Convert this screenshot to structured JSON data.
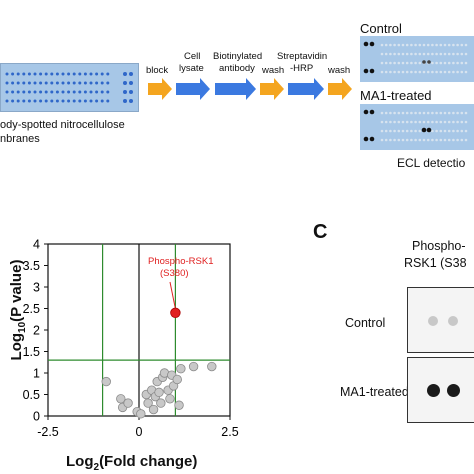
{
  "workflow": {
    "membrane_caption_line1": "ody-spotted nitrocellulose",
    "membrane_caption_line2": "nbranes",
    "steps": {
      "block": "block",
      "cell_lysate_1": "Cell",
      "cell_lysate_2": "lysate",
      "biotinylated_1": "Biotinylated",
      "biotinylated_2": "antibody",
      "wash_1": "wash",
      "strep_1": "Streptavidin",
      "strep_2": "-HRP",
      "wash_2": "wash"
    },
    "blot_control_label": "Control",
    "blot_treated_label": "MA1-treated",
    "ecl_label": "ECL detectio",
    "colors": {
      "arrow_orange": "#f4a51f",
      "arrow_blue": "#3b79e0",
      "membrane_bg": "#a7c7e7",
      "dot_blue": "#2f67c9"
    }
  },
  "chart_data": {
    "type": "scatter",
    "xlabel": "Log2(Fold change)",
    "ylabel": "Log10(P value)",
    "xlim": [
      -2.5,
      2.5
    ],
    "ylim": [
      0,
      4
    ],
    "xticks": [
      "-2.5",
      "0",
      "2.5"
    ],
    "yticks": [
      "0",
      "0.5",
      "1",
      "1.5",
      "2",
      "2.5",
      "3",
      "3.5",
      "4"
    ],
    "grid": false,
    "vlines": [
      -1,
      0,
      1
    ],
    "hline": 1.3,
    "highlight": {
      "label_line1": "Phospho-RSK1",
      "label_line2": "(S380)",
      "x": 1.0,
      "y": 2.4,
      "color": "#e02020"
    },
    "points": [
      {
        "x": -0.5,
        "y": 0.4
      },
      {
        "x": -0.45,
        "y": 0.2
      },
      {
        "x": -0.3,
        "y": 0.3
      },
      {
        "x": -0.05,
        "y": 0.1
      },
      {
        "x": 0.05,
        "y": 0.05
      },
      {
        "x": 0.2,
        "y": 0.5
      },
      {
        "x": 0.25,
        "y": 0.3
      },
      {
        "x": 0.35,
        "y": 0.6
      },
      {
        "x": 0.4,
        "y": 0.15
      },
      {
        "x": 0.45,
        "y": 0.45
      },
      {
        "x": 0.5,
        "y": 0.8
      },
      {
        "x": 0.55,
        "y": 0.55
      },
      {
        "x": 0.6,
        "y": 0.3
      },
      {
        "x": 0.65,
        "y": 0.9
      },
      {
        "x": 0.7,
        "y": 1.0
      },
      {
        "x": 0.8,
        "y": 0.6
      },
      {
        "x": 0.85,
        "y": 0.4
      },
      {
        "x": 0.9,
        "y": 0.95
      },
      {
        "x": 0.95,
        "y": 0.7
      },
      {
        "x": 1.05,
        "y": 0.85
      },
      {
        "x": 1.1,
        "y": 0.25
      },
      {
        "x": 1.15,
        "y": 1.1
      },
      {
        "x": 1.5,
        "y": 1.15
      },
      {
        "x": 2.0,
        "y": 1.15
      },
      {
        "x": -0.9,
        "y": 0.8
      }
    ]
  },
  "panel_c": {
    "panel_letter": "C",
    "phospho_line1": "Phospho-",
    "phospho_line2": "RSK1 (S38",
    "control_label": "Control",
    "treated_label": "MA1-treated"
  }
}
